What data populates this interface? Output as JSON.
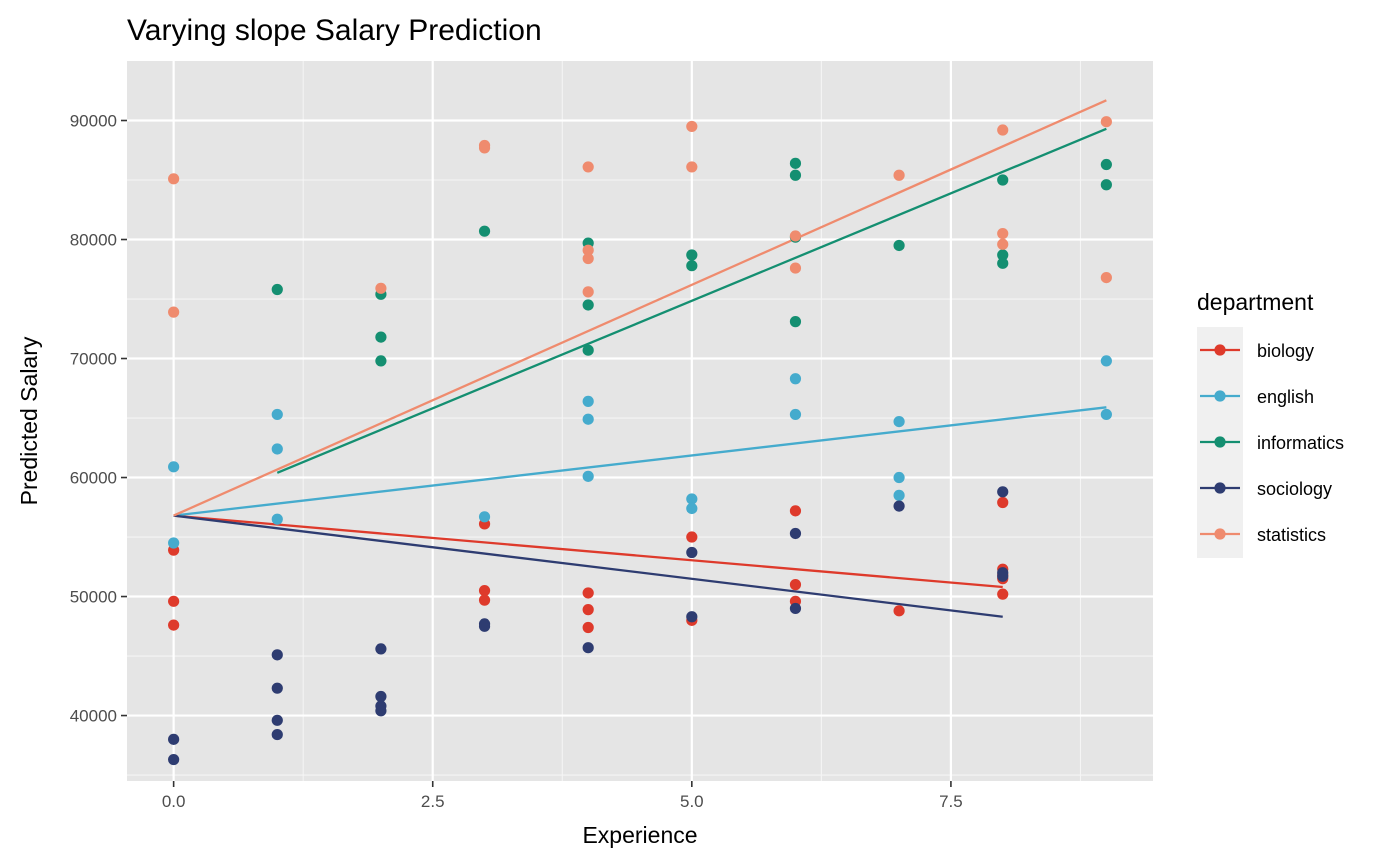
{
  "chart_data": {
    "type": "scatter",
    "title": "Varying slope Salary Prediction",
    "xlabel": "Experience",
    "ylabel": "Predicted Salary",
    "xlim": [
      -0.45,
      9.45
    ],
    "ylim": [
      34500,
      95000
    ],
    "x_ticks": [
      0,
      2.5,
      5,
      7.5
    ],
    "x_tick_labels": [
      "0.0",
      "2.5",
      "5.0",
      "7.5"
    ],
    "y_ticks": [
      40000,
      50000,
      60000,
      70000,
      80000,
      90000
    ],
    "y_tick_labels": [
      "40000",
      "50000",
      "60000",
      "70000",
      "80000",
      "90000"
    ],
    "grid": true,
    "legend": {
      "title": "department",
      "position": "right",
      "entries": [
        "biology",
        "english",
        "informatics",
        "sociology",
        "statistics"
      ]
    },
    "series": [
      {
        "name": "biology",
        "color": "#de3a2b",
        "line": [
          [
            0,
            56800
          ],
          [
            8,
            50800
          ]
        ],
        "points": [
          [
            0,
            53900
          ],
          [
            0,
            49600
          ],
          [
            0,
            47600
          ],
          [
            3,
            56100
          ],
          [
            3,
            50500
          ],
          [
            3,
            49700
          ],
          [
            4,
            50300
          ],
          [
            4,
            48900
          ],
          [
            4,
            47400
          ],
          [
            5,
            55000
          ],
          [
            5,
            48000
          ],
          [
            6,
            57200
          ],
          [
            6,
            51000
          ],
          [
            6,
            49600
          ],
          [
            7,
            48800
          ],
          [
            8,
            57900
          ],
          [
            8,
            52300
          ],
          [
            8,
            51800
          ],
          [
            8,
            51500
          ],
          [
            8,
            50200
          ]
        ]
      },
      {
        "name": "english",
        "color": "#45abcd",
        "line": [
          [
            0,
            56800
          ],
          [
            9,
            65900
          ]
        ],
        "points": [
          [
            0,
            60900
          ],
          [
            0,
            54500
          ],
          [
            1,
            65300
          ],
          [
            1,
            62400
          ],
          [
            1,
            56500
          ],
          [
            3,
            56700
          ],
          [
            4,
            66400
          ],
          [
            4,
            64900
          ],
          [
            4,
            60100
          ],
          [
            5,
            58200
          ],
          [
            5,
            57400
          ],
          [
            6,
            68300
          ],
          [
            6,
            65300
          ],
          [
            7,
            64700
          ],
          [
            7,
            60000
          ],
          [
            7,
            58500
          ],
          [
            9,
            69800
          ],
          [
            9,
            65300
          ]
        ]
      },
      {
        "name": "informatics",
        "color": "#148f71",
        "line": [
          [
            1,
            60400
          ],
          [
            9,
            89300
          ]
        ],
        "points": [
          [
            1,
            75800
          ],
          [
            2,
            75400
          ],
          [
            2,
            71800
          ],
          [
            2,
            69800
          ],
          [
            3,
            80700
          ],
          [
            4,
            79700
          ],
          [
            4,
            74500
          ],
          [
            4,
            70700
          ],
          [
            5,
            78700
          ],
          [
            5,
            77800
          ],
          [
            6,
            86400
          ],
          [
            6,
            85400
          ],
          [
            6,
            80200
          ],
          [
            6,
            73100
          ],
          [
            7,
            79500
          ],
          [
            8,
            85000
          ],
          [
            8,
            78700
          ],
          [
            8,
            78000
          ],
          [
            9,
            86300
          ],
          [
            9,
            84600
          ]
        ]
      },
      {
        "name": "sociology",
        "color": "#2e3c71",
        "line": [
          [
            0,
            56800
          ],
          [
            8,
            48300
          ]
        ],
        "points": [
          [
            0,
            38000
          ],
          [
            0,
            36300
          ],
          [
            1,
            45100
          ],
          [
            1,
            42300
          ],
          [
            1,
            39600
          ],
          [
            1,
            38400
          ],
          [
            2,
            45600
          ],
          [
            2,
            41600
          ],
          [
            2,
            40800
          ],
          [
            2,
            40400
          ],
          [
            3,
            47700
          ],
          [
            3,
            47500
          ],
          [
            4,
            45700
          ],
          [
            5,
            53700
          ],
          [
            5,
            48300
          ],
          [
            6,
            55300
          ],
          [
            6,
            49000
          ],
          [
            7,
            57600
          ],
          [
            8,
            58800
          ],
          [
            8,
            52000
          ],
          [
            8,
            51700
          ]
        ]
      },
      {
        "name": "statistics",
        "color": "#ef8b6e",
        "line": [
          [
            0,
            56800
          ],
          [
            9,
            91700
          ]
        ],
        "points": [
          [
            0,
            85100
          ],
          [
            0,
            73900
          ],
          [
            2,
            75900
          ],
          [
            3,
            87900
          ],
          [
            3,
            87700
          ],
          [
            4,
            86100
          ],
          [
            4,
            79100
          ],
          [
            4,
            78400
          ],
          [
            4,
            75600
          ],
          [
            5,
            89500
          ],
          [
            5,
            86100
          ],
          [
            6,
            80300
          ],
          [
            6,
            77600
          ],
          [
            7,
            85400
          ],
          [
            8,
            89200
          ],
          [
            8,
            80500
          ],
          [
            8,
            79600
          ],
          [
            9,
            89900
          ],
          [
            9,
            76800
          ]
        ]
      }
    ]
  }
}
